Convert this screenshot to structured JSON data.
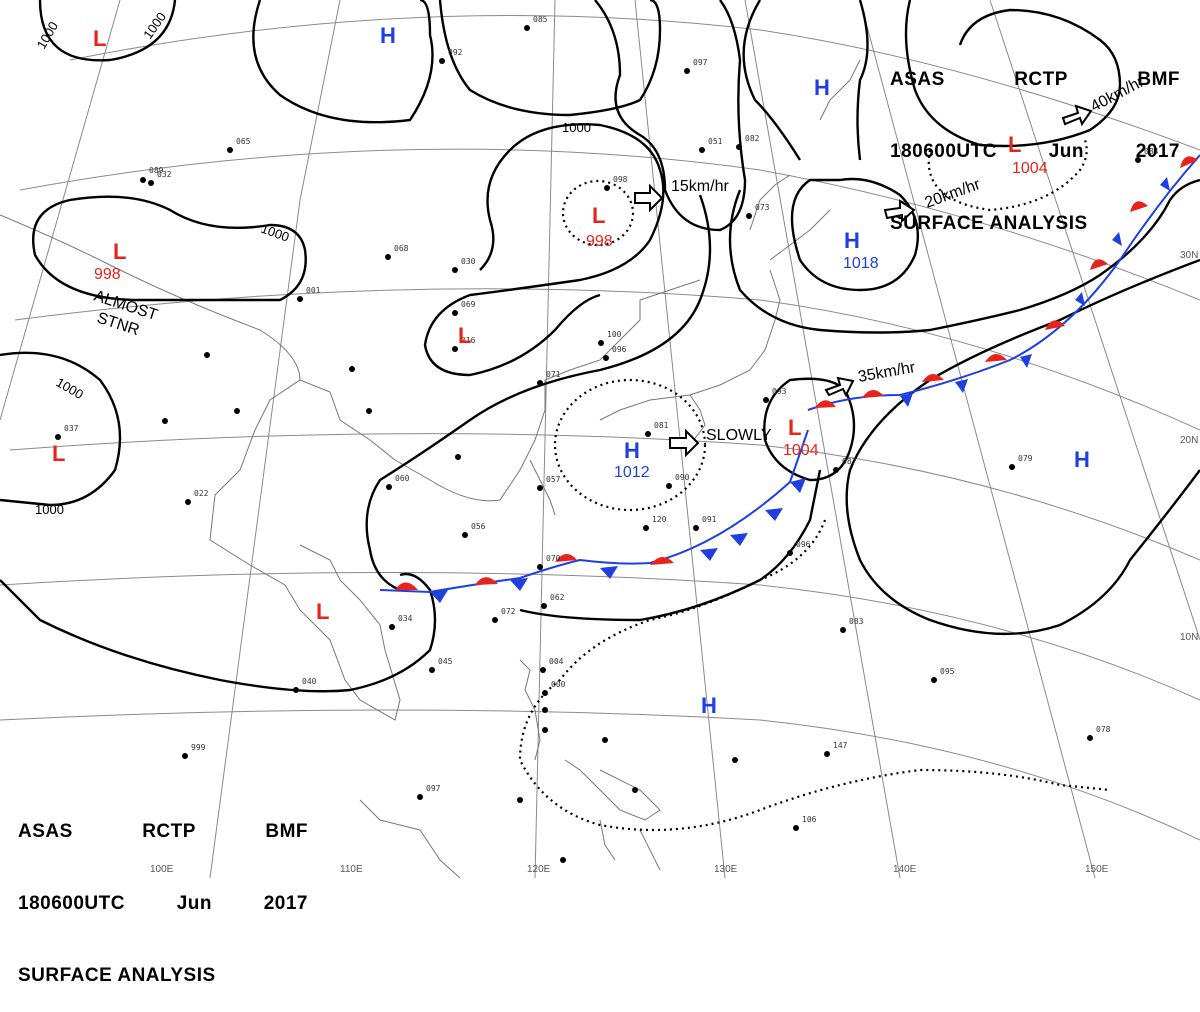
{
  "chart_title": {
    "line1": [
      "ASAS",
      "RCTP",
      "BMF"
    ],
    "line2": [
      "180600UTC",
      "Jun",
      "2017"
    ],
    "line3": "SURFACE ANALYSIS"
  },
  "pressure_systems": [
    {
      "type": "L",
      "label": "L",
      "pressure": "",
      "color": "#e8231b"
    },
    {
      "type": "H",
      "label": "H",
      "pressure": "",
      "color": "#1f3fe0"
    },
    {
      "type": "L",
      "label": "L",
      "pressure": "998",
      "color": "#e8231b"
    },
    {
      "type": "L",
      "label": "L",
      "pressure": "998",
      "color": "#e8231b"
    },
    {
      "type": "L",
      "label": "L",
      "pressure": "",
      "color": "#e8231b"
    },
    {
      "type": "H",
      "label": "H",
      "pressure": "",
      "color": "#1f3fe0"
    },
    {
      "type": "H",
      "label": "H",
      "pressure": "1018",
      "color": "#1f3fe0"
    },
    {
      "type": "L",
      "label": "L",
      "pressure": "1004",
      "color": "#e8231b"
    },
    {
      "type": "L",
      "label": "L",
      "pressure": "",
      "color": "#e8231b"
    },
    {
      "type": "H",
      "label": "H",
      "pressure": "1012",
      "color": "#1f3fe0"
    },
    {
      "type": "L",
      "label": "L",
      "pressure": "1004",
      "color": "#e8231b"
    },
    {
      "type": "H",
      "label": "H",
      "pressure": "",
      "color": "#1f3fe0"
    },
    {
      "type": "L",
      "label": "L",
      "pressure": "",
      "color": "#e8231b"
    },
    {
      "type": "H",
      "label": "H",
      "pressure": "",
      "color": "#1f3fe0"
    }
  ],
  "motion_labels": {
    "m1": "15km/hr",
    "m2": "20km/hr",
    "m3": "40km/hr",
    "m4": "35km/hr",
    "m5": "SLOWLY",
    "stnr": [
      "ALMOST",
      "STNR"
    ]
  },
  "isobar_labels": [
    "1000",
    "1000",
    "1000",
    "1000",
    "1000",
    "1000"
  ],
  "lat_labels": [
    "30N",
    "20N",
    "10N"
  ],
  "lon_labels": [
    "100E",
    "110E",
    "120E",
    "130E",
    "140E",
    "150E"
  ],
  "station_values": [
    "037",
    "032",
    "065",
    "089",
    "068",
    "030",
    "069",
    "016",
    "001",
    "022",
    "056",
    "070",
    "060",
    "034",
    "040",
    "062",
    "072",
    "057",
    "071",
    "098",
    "097",
    "085",
    "092",
    "096",
    "100",
    "081",
    "090",
    "120",
    "091",
    "096",
    "083",
    "095",
    "147",
    "106",
    "078",
    "079",
    "087",
    "093",
    "084",
    "082",
    "073",
    "051",
    "045",
    "097",
    "999",
    "004",
    "000"
  ],
  "colors": {
    "low": "#e8231b",
    "high": "#1f3fe0",
    "isobar": "#000000",
    "coast": "#777777",
    "grid": "#8a8a8a"
  }
}
